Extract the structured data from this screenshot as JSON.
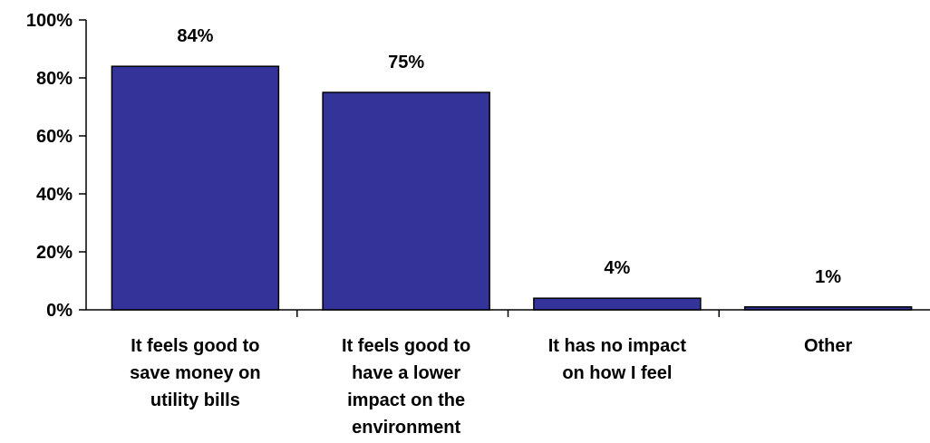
{
  "chart_data": {
    "type": "bar",
    "categories": [
      [
        "It feels good to",
        "save money on",
        "utility bills"
      ],
      [
        "It feels good to",
        "have a lower",
        "impact on the",
        "environment"
      ],
      [
        "It has no impact",
        "on how I feel"
      ],
      [
        "Other"
      ]
    ],
    "values": [
      84,
      75,
      4,
      1
    ],
    "data_labels": [
      "84%",
      "75%",
      "4%",
      "1%"
    ],
    "yticks": [
      "0%",
      "20%",
      "40%",
      "60%",
      "80%",
      "100%"
    ],
    "ylim": [
      0,
      100
    ],
    "title": "",
    "xlabel": "",
    "ylabel": "",
    "grid": false,
    "legend": "none",
    "bar_color": "#333399",
    "bar_edge_color": "#000000"
  }
}
